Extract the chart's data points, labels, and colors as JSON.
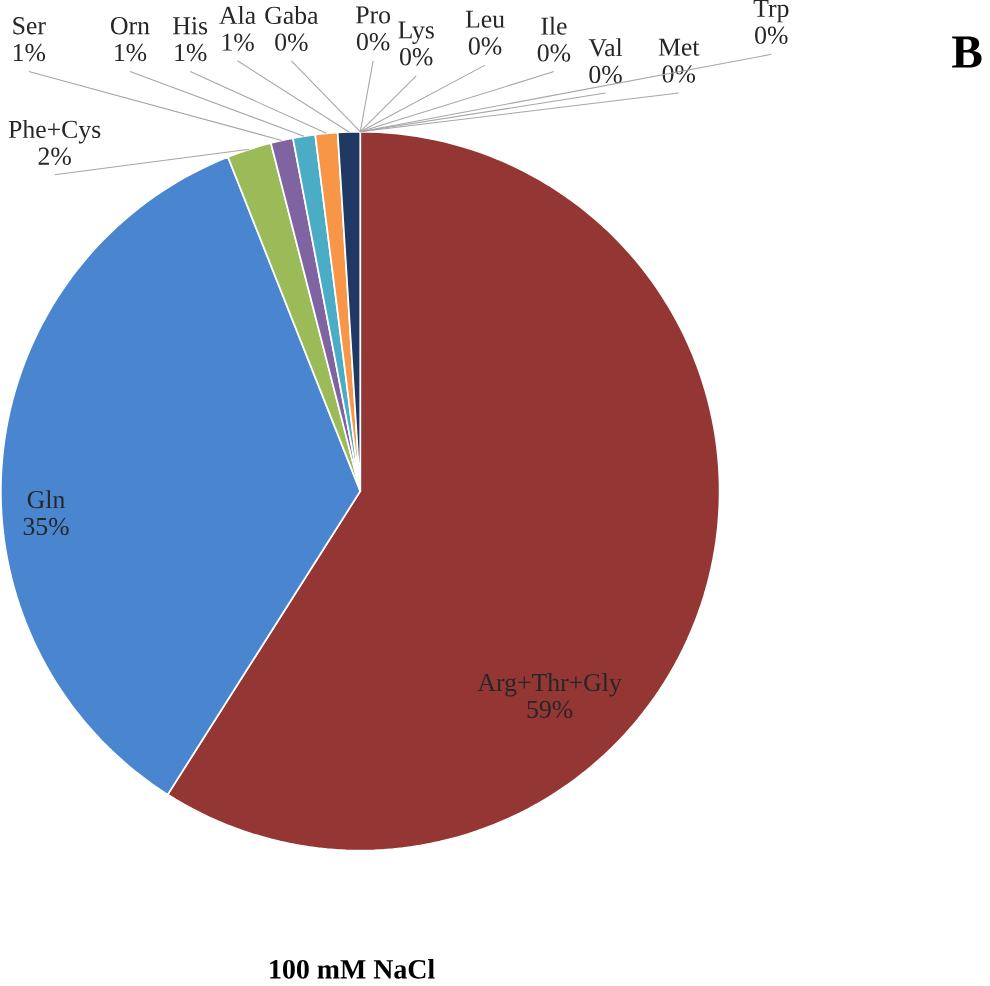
{
  "chart_data": {
    "type": "pie",
    "title": "100 mM NaCl",
    "categories": [
      "Arg+Thr+Gly",
      "Gln",
      "Phe+Cys",
      "Ser",
      "Orn",
      "His",
      "Ala",
      "Gaba",
      "Pro",
      "Lys",
      "Leu",
      "Ile",
      "Val",
      "Met",
      "Trp"
    ],
    "values": [
      59,
      35,
      2,
      1,
      1,
      1,
      1,
      0,
      0,
      0,
      0,
      0,
      0,
      0,
      0
    ],
    "colors": [
      "#943634",
      "#4a86d0",
      "#9bbb59",
      "#8064a2",
      "#4bacc6",
      "#f79646",
      "#1f3864",
      "#c0504d",
      "#7f7f7f",
      "#ffc000",
      "#5b9bd5",
      "#70ad47",
      "#264478",
      "#9e480e",
      "#636363"
    ],
    "value_labels": [
      "59%",
      "35%",
      "2%",
      "1%",
      "1%",
      "1%",
      "1%",
      "0%",
      "0%",
      "0%",
      "0%",
      "0%",
      "0%",
      "0%",
      "0%"
    ],
    "annotations": [
      "B"
    ]
  }
}
